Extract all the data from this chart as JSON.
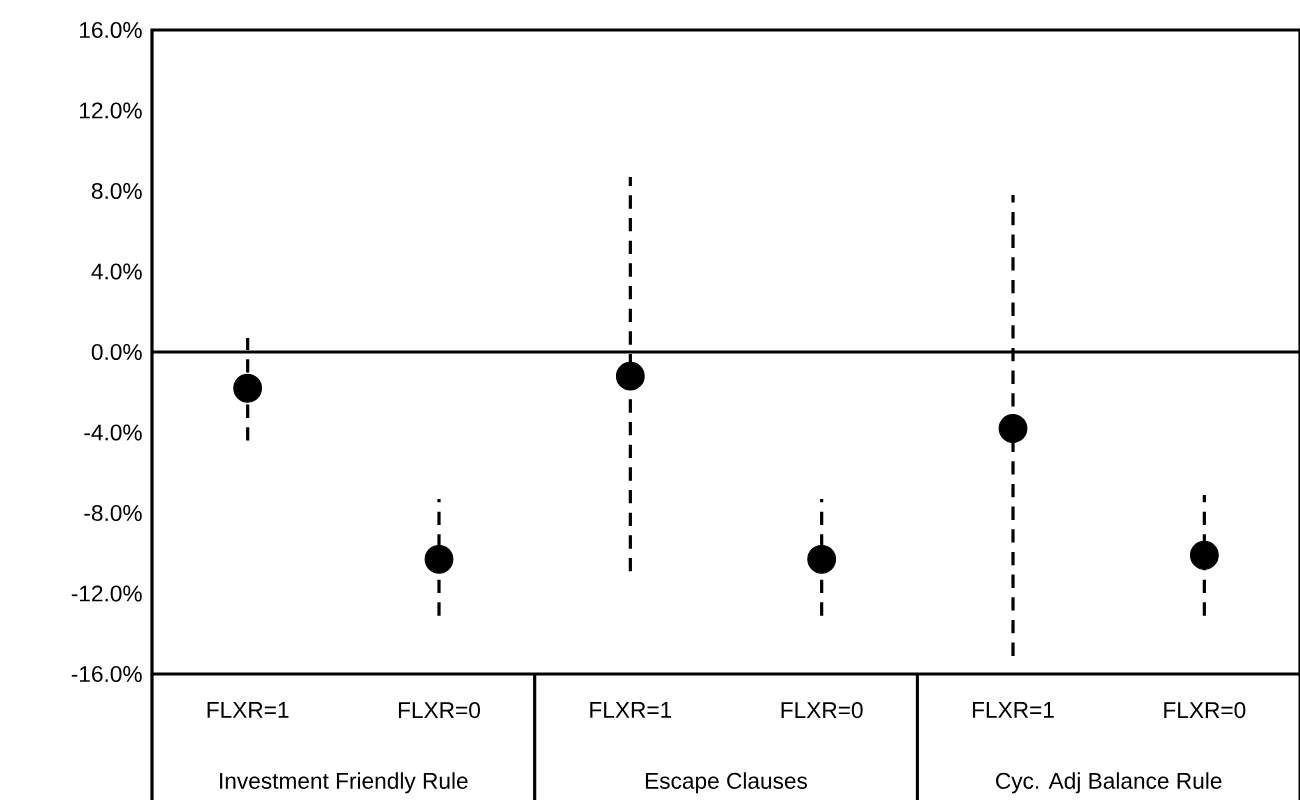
{
  "chart_data": {
    "type": "scatter",
    "categories": [
      "FLXR=1",
      "FLXR=0",
      "FLXR=1",
      "FLXR=0",
      "FLXR=1",
      "FLXR=0"
    ],
    "values": [
      -1.8,
      -10.3,
      -1.2,
      -10.3,
      -3.8,
      -10.1
    ],
    "errors": [
      [
        -4.4,
        0.7
      ],
      [
        -13.1,
        -7.3
      ],
      [
        -10.9,
        8.7
      ],
      [
        -13.1,
        -7.3
      ],
      [
        -15.1,
        7.8
      ],
      [
        -13.1,
        -7.1
      ]
    ],
    "color": "#000000",
    "marker": "circle",
    "annotations": [
      "Investment Friendly Rule",
      "Escape Clauses",
      "Cyc. Adj Balance Rule"
    ],
    "ref_lines": [
      {
        "axis": "y",
        "value": 0
      }
    ],
    "ylim": [
      -16,
      16
    ],
    "yticks": [
      {
        "value": -16,
        "label": "-16.0%"
      },
      {
        "value": -12,
        "label": "-12.0%"
      },
      {
        "value": -8,
        "label": "-8.0%"
      },
      {
        "value": -4,
        "label": "-4.0%"
      },
      {
        "value": 0,
        "label": "0.0%"
      },
      {
        "value": 4,
        "label": "4.0%"
      },
      {
        "value": 8,
        "label": "8.0%"
      },
      {
        "value": 12,
        "label": "12.0%"
      },
      {
        "value": 16,
        "label": "16.0%"
      }
    ],
    "grid": false,
    "legend": false
  }
}
